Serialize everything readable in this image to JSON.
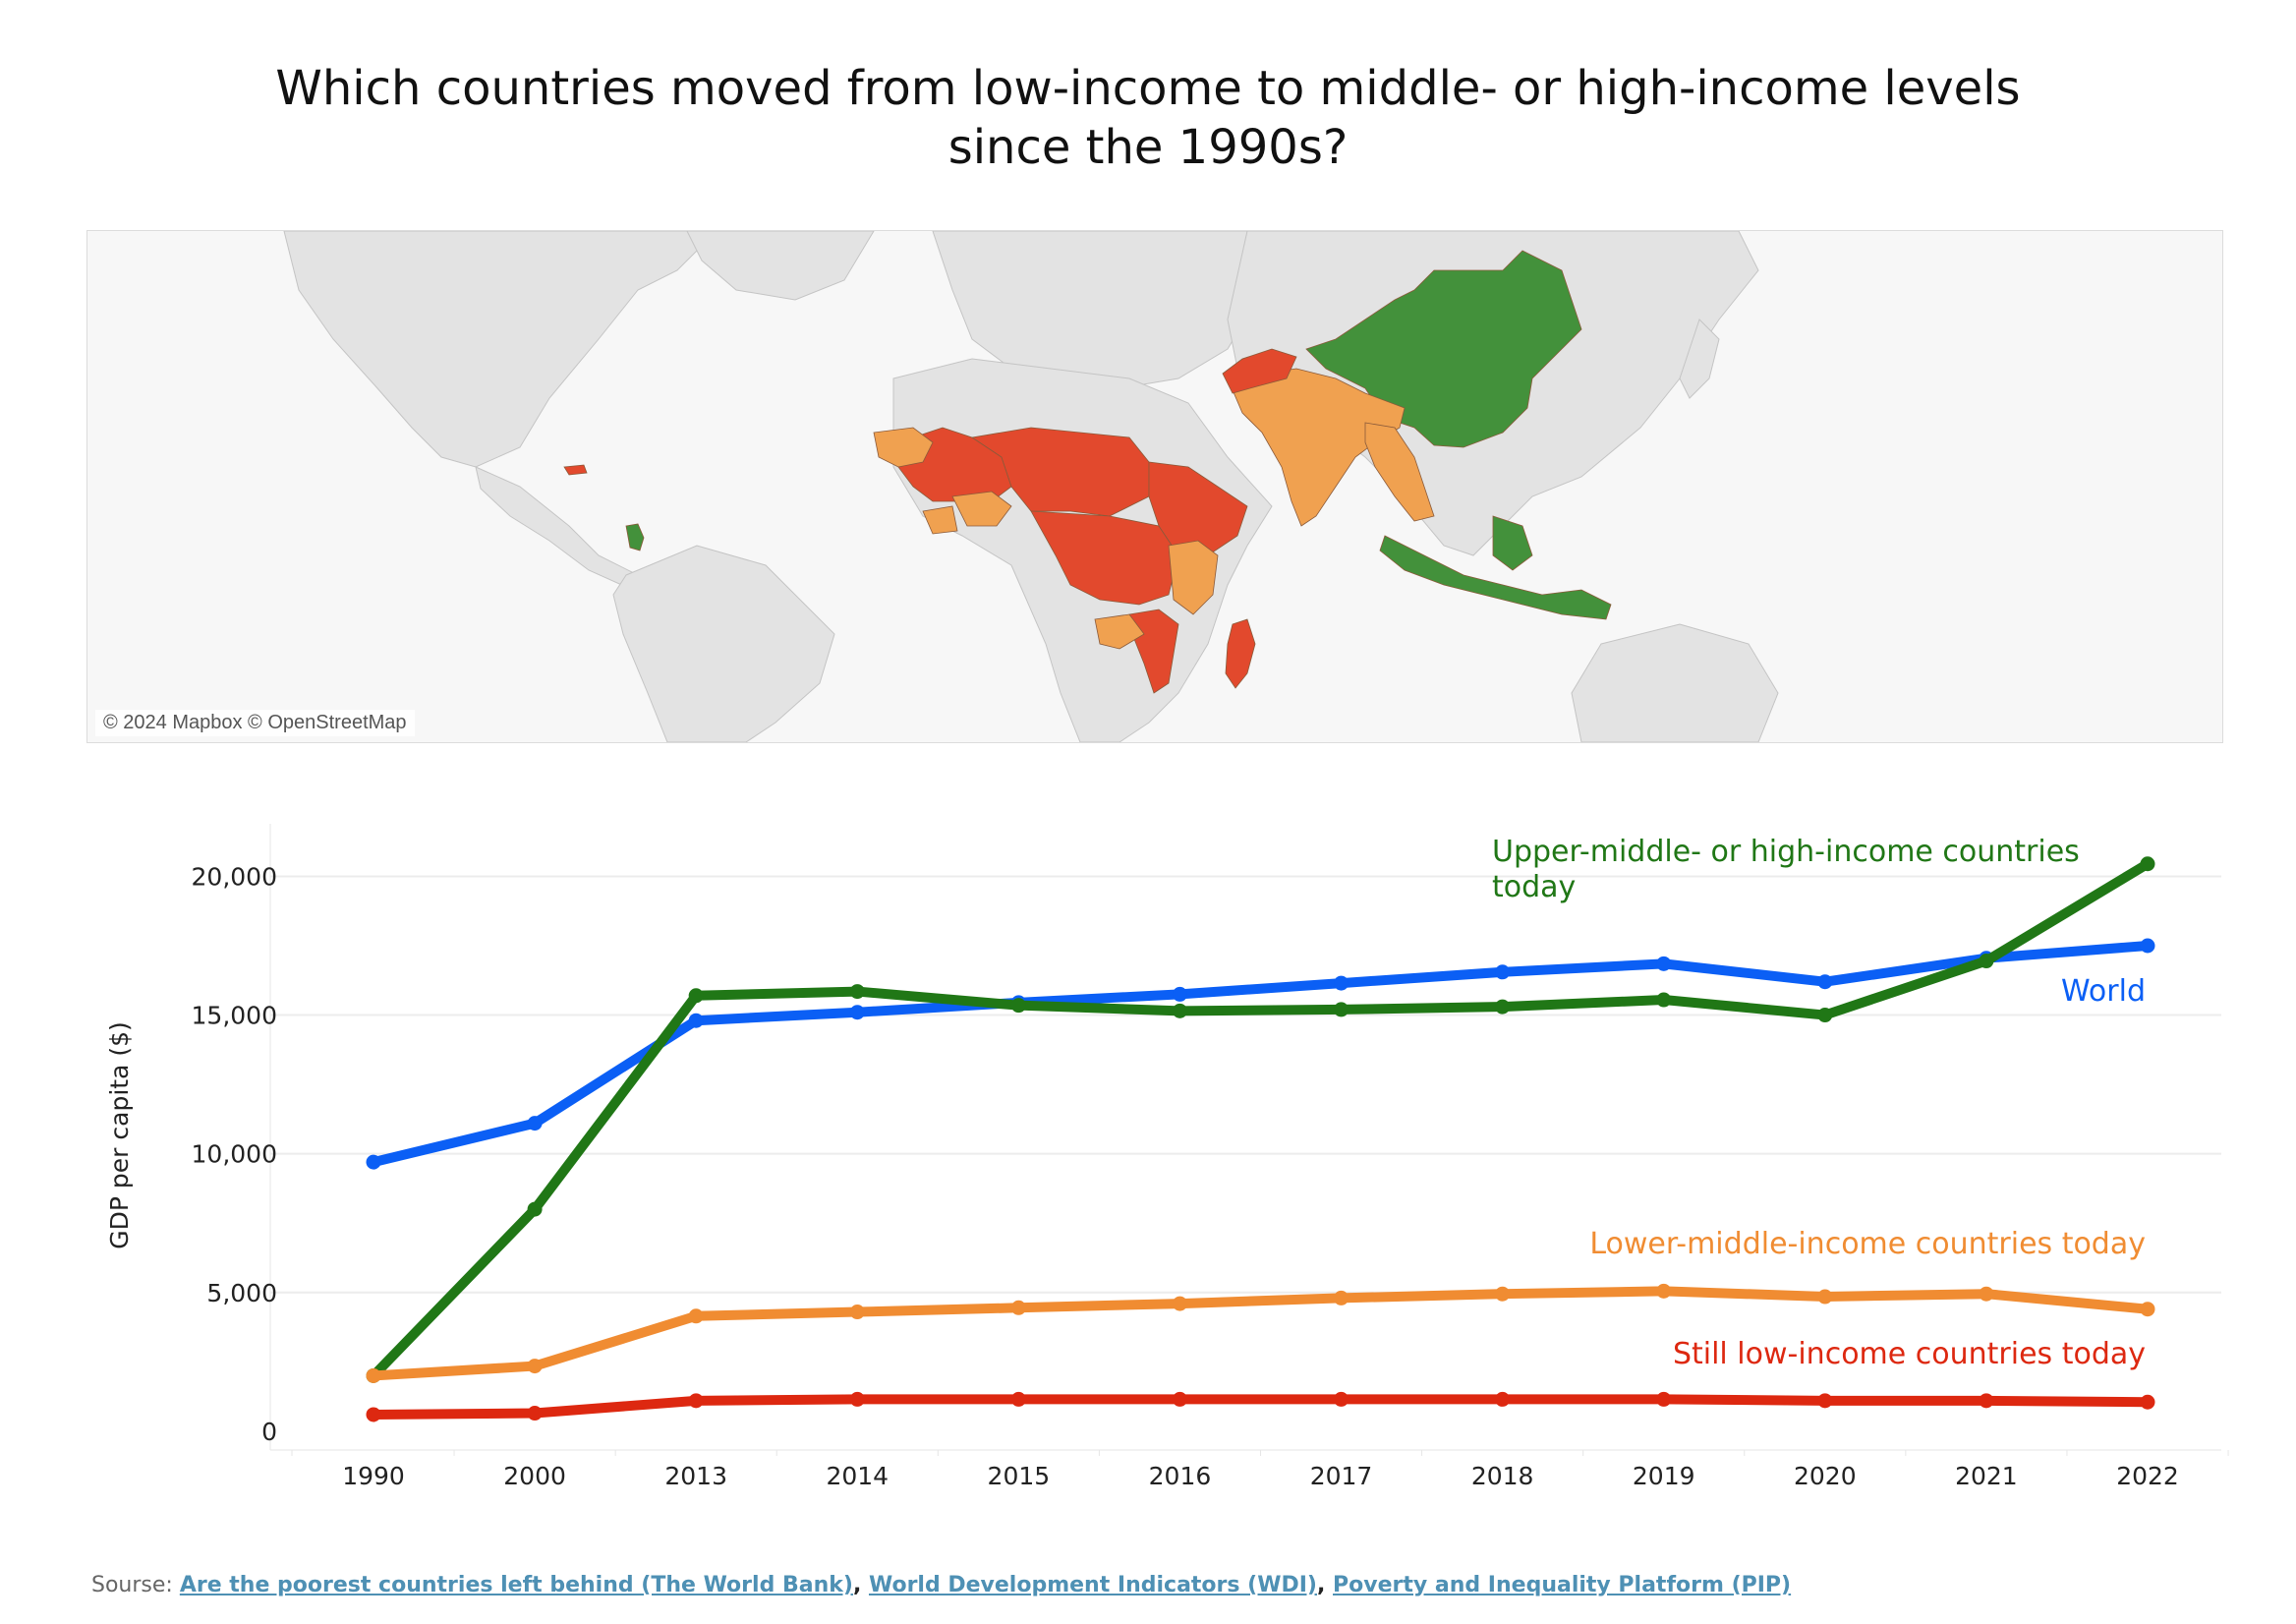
{
  "title": {
    "line1": "Which countries moved from low-income to middle- or high-income levels",
    "line2": "since the 1990s?"
  },
  "map": {
    "credit": "© 2024 Mapbox © OpenStreetMap",
    "colors": {
      "land": "#e3e3e3",
      "ocean": "#f7f7f7",
      "high": "#43913b",
      "lower_middle": "#f0a150",
      "low": "#e2492d"
    }
  },
  "chart_data": {
    "type": "line",
    "categories": [
      "1990",
      "2000",
      "2013",
      "2014",
      "2015",
      "2016",
      "2017",
      "2018",
      "2019",
      "2020",
      "2021",
      "2022"
    ],
    "ylabel": "GDP per capita ($)",
    "ylim": [
      -500,
      22000
    ],
    "yticks": [
      {
        "value": 0,
        "label": "0"
      },
      {
        "value": 5000,
        "label": "5,000"
      },
      {
        "value": 10000,
        "label": "10,000"
      },
      {
        "value": 15000,
        "label": "15,000"
      },
      {
        "value": 20000,
        "label": "20,000"
      }
    ],
    "grid": "horizontal",
    "series": [
      {
        "name": "World",
        "color": "#0b5ff5",
        "values": [
          9700,
          11100,
          14800,
          15100,
          15450,
          15750,
          16150,
          16550,
          16850,
          16200,
          17050,
          17500
        ]
      },
      {
        "name": "Upper-middle- or high-income countries today",
        "color": "#207716",
        "values": [
          2000,
          8000,
          15700,
          15850,
          15350,
          15150,
          15200,
          15300,
          15550,
          15000,
          16950,
          20450
        ]
      },
      {
        "name": "Lower-middle-income countries today",
        "color": "#f08c32",
        "values": [
          2000,
          2350,
          4150,
          4300,
          4450,
          4600,
          4800,
          4950,
          5050,
          4850,
          4950,
          4400
        ]
      },
      {
        "name": "Still low-income countries today",
        "color": "#dd2810",
        "values": [
          600,
          650,
          1100,
          1150,
          1150,
          1150,
          1150,
          1150,
          1150,
          1100,
          1100,
          1050
        ]
      }
    ]
  },
  "source": {
    "prefix": "Sourse: ",
    "links": [
      "Are the poorest countries left behind (The World Bank)",
      "World Development Indicators (WDI)",
      "Poverty and Inequality Platform (PIP)"
    ],
    "separator": ", "
  }
}
